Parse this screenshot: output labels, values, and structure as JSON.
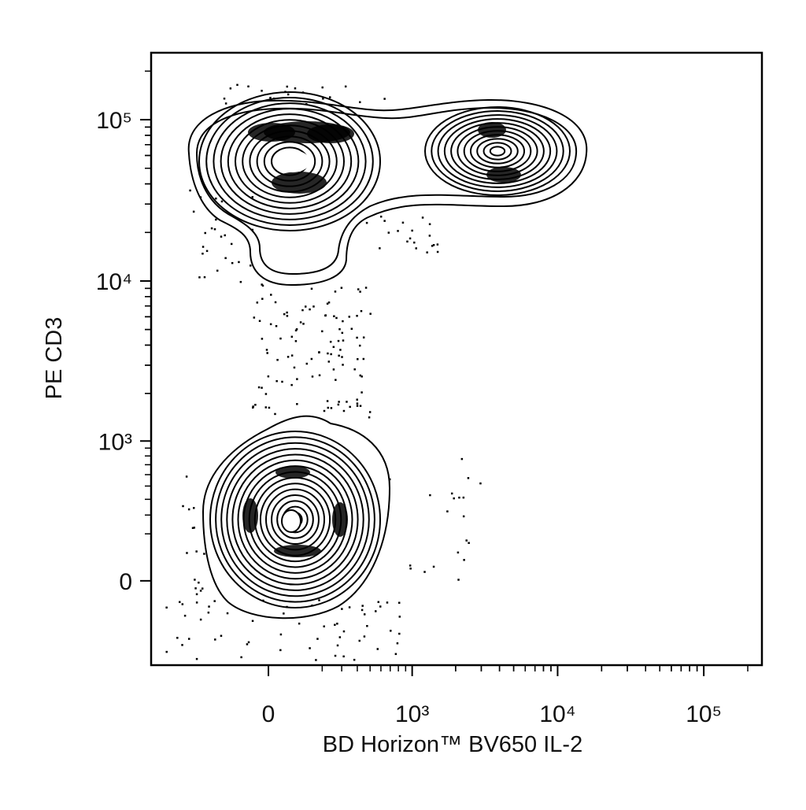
{
  "chart_data": {
    "type": "contour",
    "x_label": "BD Horizon™ BV650 IL-2",
    "y_label": "PE CD3",
    "xscale": "biexponential",
    "yscale": "biexponential",
    "xlim": [
      -650,
      250000
    ],
    "ylim": [
      -420,
      260000
    ],
    "xticks": [
      0,
      {
        "value": 1000,
        "label": "10³"
      },
      {
        "value": 10000,
        "label": "10⁴"
      },
      {
        "value": 100000,
        "label": "10⁵"
      }
    ],
    "yticks": [
      0,
      {
        "value": 1000,
        "label": "10³"
      },
      {
        "value": 10000,
        "label": "10⁴"
      },
      {
        "value": 100000,
        "label": "10⁵"
      }
    ],
    "color": "#000000"
  }
}
